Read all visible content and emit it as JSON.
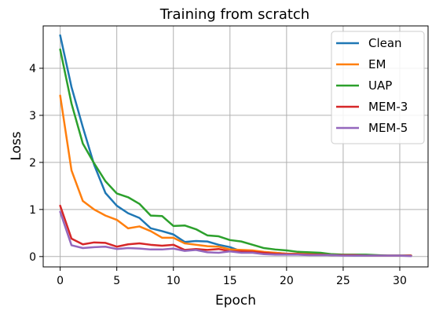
{
  "chart_data": {
    "type": "line",
    "title": "Training from scratch",
    "xlabel": "Epoch",
    "ylabel": "Loss",
    "xlim": [
      -1.5,
      32.5
    ],
    "ylim": [
      -0.22,
      4.9
    ],
    "x_ticks": [
      0,
      5,
      10,
      15,
      20,
      25,
      30
    ],
    "y_ticks": [
      0,
      1,
      2,
      3,
      4
    ],
    "grid": true,
    "legend_position": "top-right",
    "x": [
      0,
      1,
      2,
      3,
      4,
      5,
      6,
      7,
      8,
      9,
      10,
      11,
      12,
      13,
      14,
      15,
      16,
      17,
      18,
      19,
      20,
      21,
      22,
      23,
      24,
      25,
      26,
      27,
      28,
      29,
      30,
      31
    ],
    "series": [
      {
        "name": "Clean",
        "color": "#1f77b4",
        "values": [
          4.7,
          3.6,
          2.75,
          1.95,
          1.35,
          1.08,
          0.92,
          0.82,
          0.6,
          0.54,
          0.47,
          0.31,
          0.33,
          0.32,
          0.25,
          0.2,
          0.11,
          0.1,
          0.09,
          0.08,
          0.06,
          0.05,
          0.05,
          0.04,
          0.03,
          0.03,
          0.02,
          0.02,
          0.02,
          0.02,
          0.02,
          0.02
        ]
      },
      {
        "name": "EM",
        "color": "#ff7f0e",
        "values": [
          3.42,
          1.83,
          1.18,
          1.0,
          0.87,
          0.78,
          0.6,
          0.64,
          0.54,
          0.4,
          0.4,
          0.28,
          0.25,
          0.22,
          0.21,
          0.15,
          0.14,
          0.13,
          0.1,
          0.08,
          0.06,
          0.06,
          0.05,
          0.05,
          0.04,
          0.03,
          0.03,
          0.03,
          0.02,
          0.02,
          0.02,
          0.02
        ]
      },
      {
        "name": "UAP",
        "color": "#2ca02c",
        "values": [
          4.4,
          3.25,
          2.4,
          1.98,
          1.6,
          1.34,
          1.26,
          1.12,
          0.87,
          0.86,
          0.65,
          0.66,
          0.58,
          0.45,
          0.43,
          0.35,
          0.32,
          0.25,
          0.18,
          0.15,
          0.13,
          0.1,
          0.09,
          0.08,
          0.05,
          0.04,
          0.04,
          0.04,
          0.03,
          0.02,
          0.02,
          0.02
        ]
      },
      {
        "name": "MEM-3",
        "color": "#d62728",
        "values": [
          1.08,
          0.38,
          0.26,
          0.3,
          0.29,
          0.21,
          0.26,
          0.28,
          0.25,
          0.23,
          0.25,
          0.14,
          0.16,
          0.14,
          0.16,
          0.11,
          0.11,
          0.1,
          0.08,
          0.06,
          0.05,
          0.05,
          0.04,
          0.04,
          0.03,
          0.03,
          0.03,
          0.02,
          0.02,
          0.02,
          0.02,
          0.02
        ]
      },
      {
        "name": "MEM-5",
        "color": "#9467bd",
        "values": [
          0.95,
          0.24,
          0.18,
          0.2,
          0.21,
          0.16,
          0.18,
          0.17,
          0.15,
          0.15,
          0.17,
          0.12,
          0.14,
          0.09,
          0.08,
          0.11,
          0.08,
          0.08,
          0.05,
          0.04,
          0.04,
          0.04,
          0.03,
          0.03,
          0.03,
          0.02,
          0.02,
          0.02,
          0.02,
          0.02,
          0.02,
          0.01
        ]
      }
    ]
  }
}
